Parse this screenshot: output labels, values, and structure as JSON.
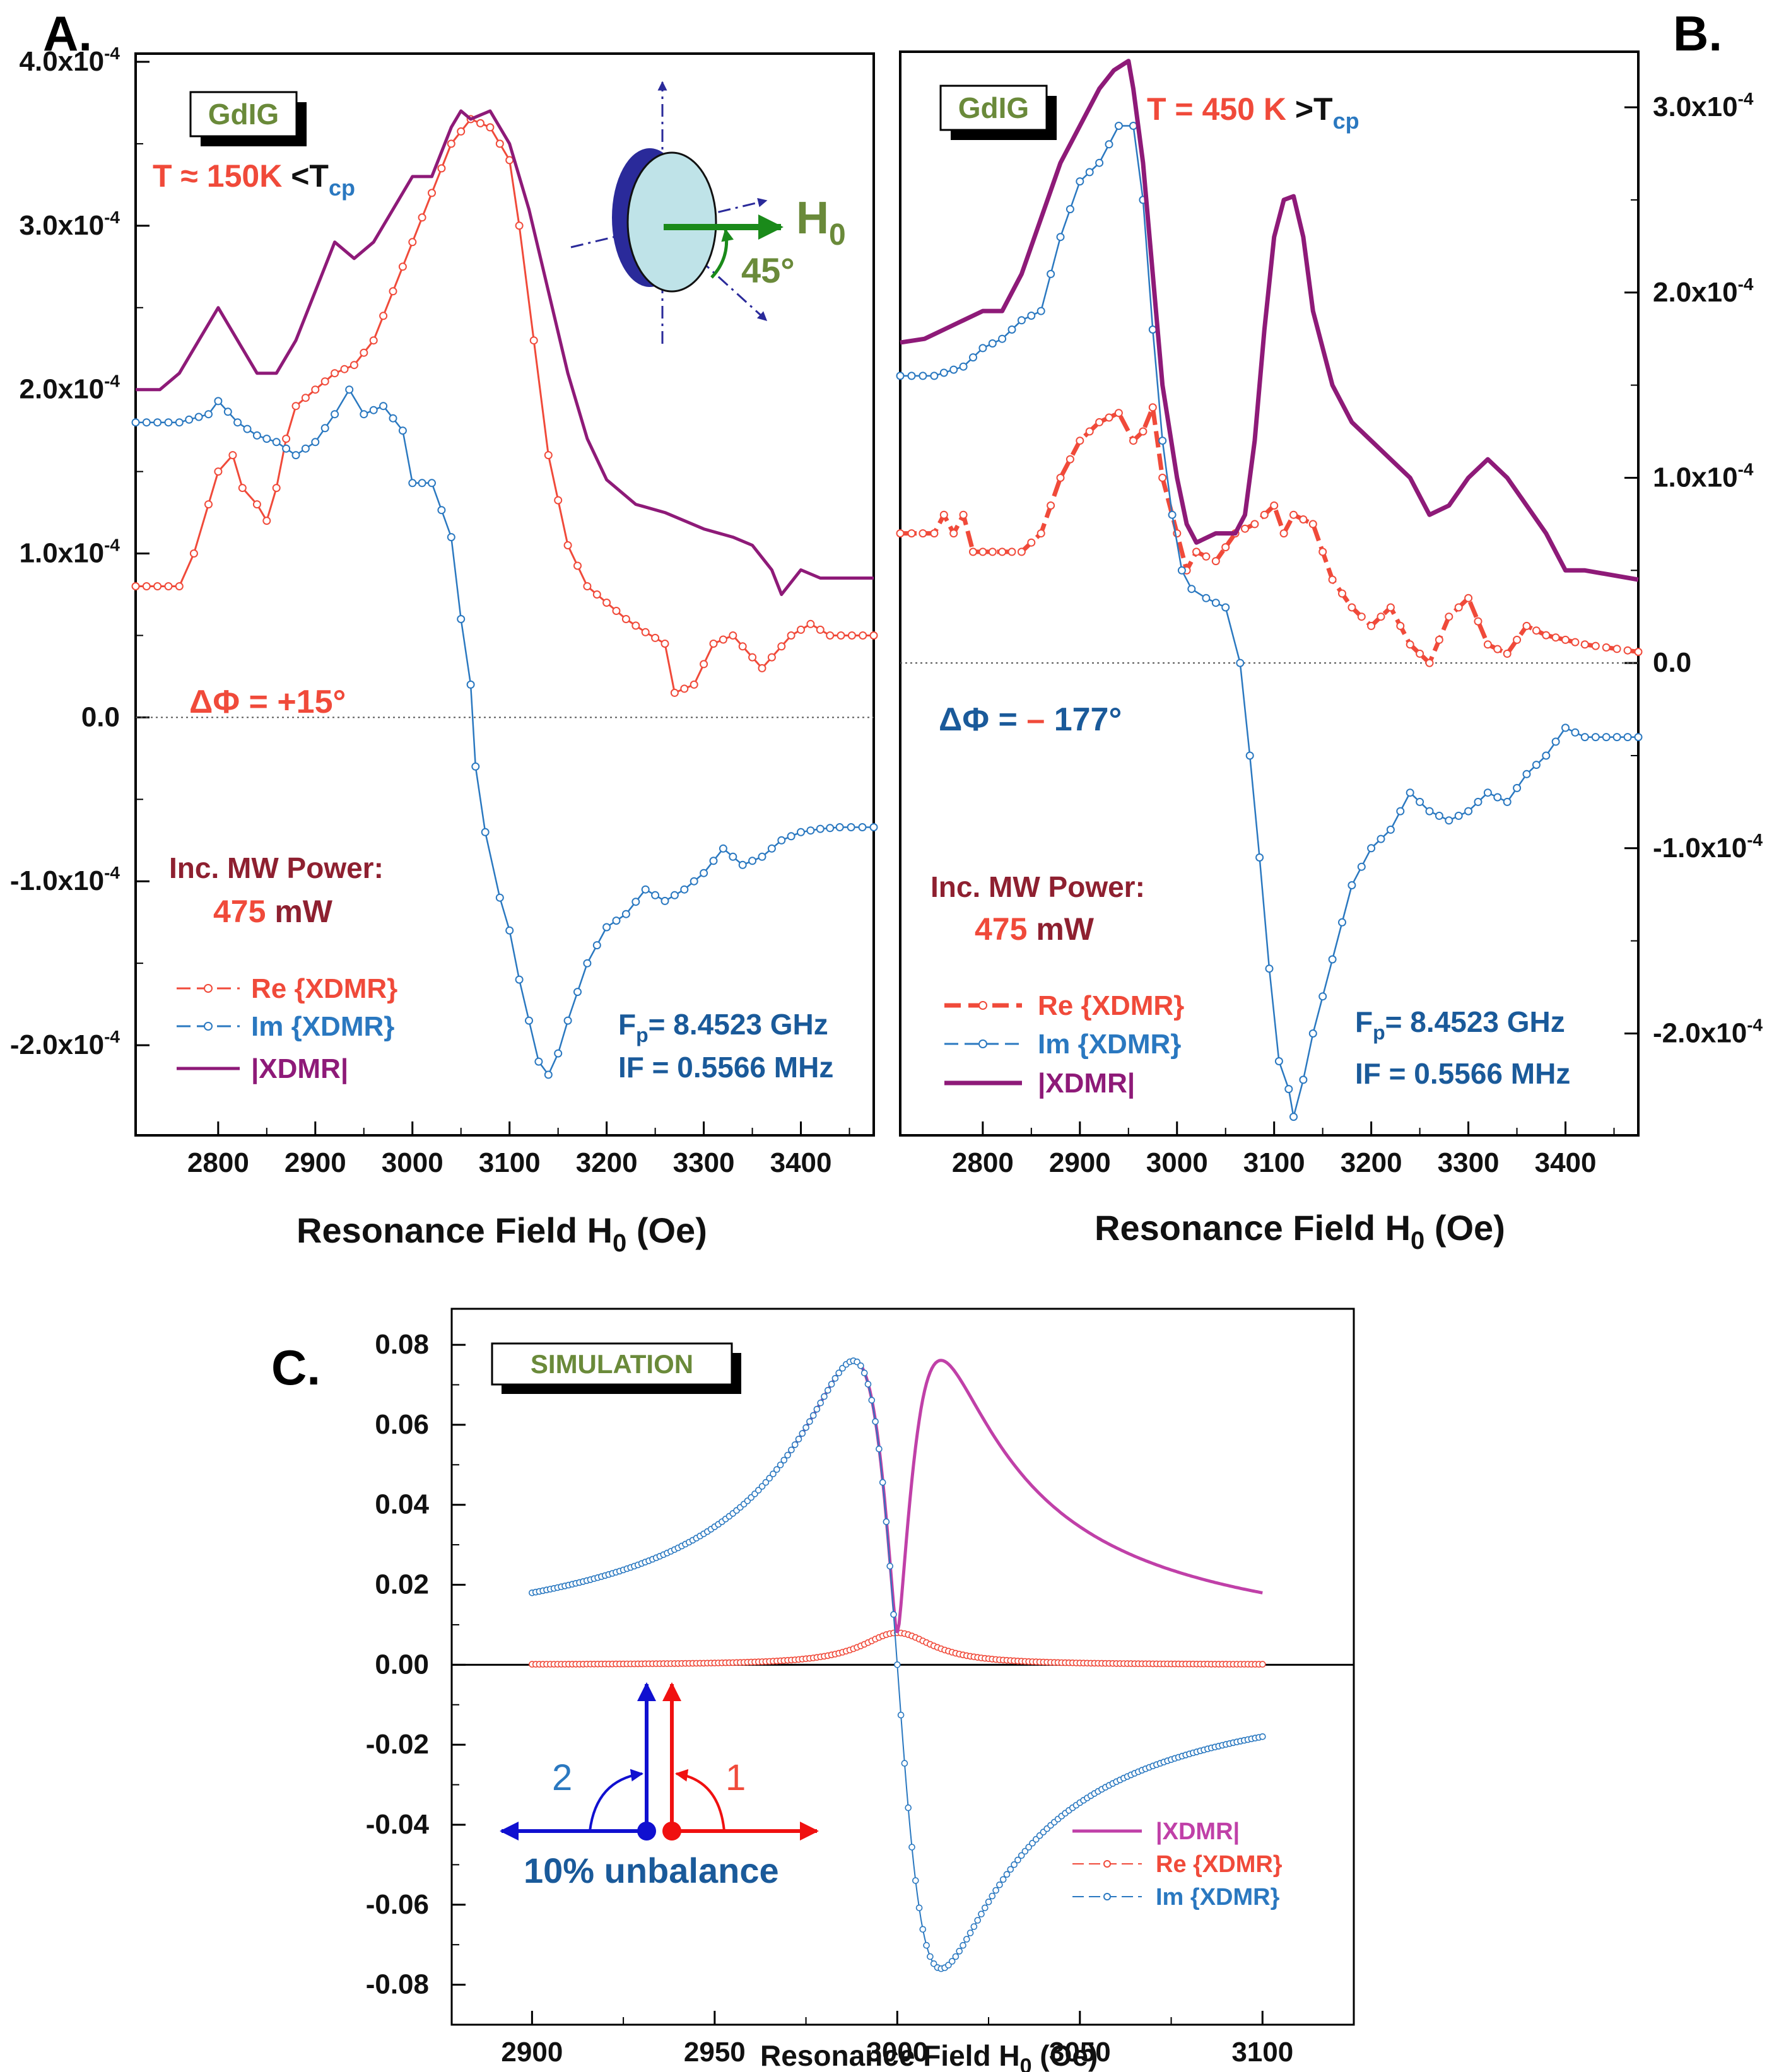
{
  "colors": {
    "re": "#f04a3a",
    "im": "#2a78c0",
    "mag": "#8e1a78",
    "mag_sim": "#c040a8",
    "sample": "#6a8a3a",
    "h0": "#1a8a1a",
    "navy": "#2a2a9a",
    "power": "#8e2030",
    "blue_text": "#1a5a9a",
    "arrow_blue": "#1010d0",
    "arrow_red": "#f01010"
  },
  "panelA": {
    "letter": "A.",
    "sample": "GdIG",
    "temp": {
      "prefix": "T ≈ ",
      "value": "150K",
      "rel": " <T",
      "sub": "cp"
    },
    "phase": "ΔΦ = +15°",
    "power_label": "Inc. MW Power:",
    "power_value": "475",
    "power_unit": " mW",
    "legend": {
      "re": "Re {XDMR}",
      "im": "Im {XDMR}",
      "mag": "|XDMR|"
    },
    "freq": {
      "fp": "F",
      "fp_sub": "p",
      "fp_value": "= 8.4523 GHz",
      "if": "IF = 0.5566 MHz"
    },
    "inset": {
      "field": "H",
      "field_sub": "0",
      "angle": "45°"
    },
    "xlabel": "Resonance  Field H",
    "xlabel_sub": "0",
    "xlabel_unit": " (Oe)",
    "yticks": [
      {
        "mant": "4.0x10",
        "exp": "-4"
      },
      {
        "mant": "3.0x10",
        "exp": "-4"
      },
      {
        "mant": "2.0x10",
        "exp": "-4"
      },
      {
        "mant": "1.0x10",
        "exp": "-4"
      },
      {
        "mant": "0.0",
        "exp": ""
      },
      {
        "mant": "-1.0x10",
        "exp": "-4"
      },
      {
        "mant": "-2.0x10",
        "exp": "-4"
      }
    ]
  },
  "panelB": {
    "letter": "B.",
    "sample": "GdIG",
    "temp": {
      "prefix": "T = ",
      "value": "450 K",
      "rel": " >T",
      "sub": "cp"
    },
    "phase_prefix": "ΔΦ = ",
    "phase_sign": "–",
    "phase_value": " 177°",
    "power_label": "Inc. MW Power:",
    "power_value": "475",
    "power_unit": " mW",
    "legend": {
      "re": "Re {XDMR}",
      "im": "Im {XDMR}",
      "mag": "|XDMR|"
    },
    "freq": {
      "fp": "F",
      "fp_sub": "p",
      "fp_value": "= 8.4523 GHz",
      "if": "IF = 0.5566 MHz"
    },
    "xlabel": "Resonance Field H",
    "xlabel_sub": "0",
    "xlabel_unit": " (Oe)",
    "yticks": [
      {
        "mant": "3.0x10",
        "exp": "-4"
      },
      {
        "mant": "2.0x10",
        "exp": "-4"
      },
      {
        "mant": "1.0x10",
        "exp": "-4"
      },
      {
        "mant": "0.0",
        "exp": ""
      },
      {
        "mant": "-1.0x10",
        "exp": "-4"
      },
      {
        "mant": "-2.0x10",
        "exp": "-4"
      }
    ]
  },
  "panelC": {
    "letter": "C.",
    "sample": "SIMULATION",
    "legend": {
      "mag": "|XDMR|",
      "re": "Re {XDMR}",
      "im": "Im {XDMR}"
    },
    "unbalance": "10% unbalance",
    "arrow1": "1",
    "arrow2": "2",
    "xlabel": "Resonance Field H",
    "xlabel_sub": "0",
    "xlabel_unit": "  (Oe)"
  },
  "chart_data": [
    {
      "type": "line",
      "title": "A. GdIG, T ≈ 150K <Tcp",
      "xlabel": "Resonance  Field H0 (Oe)",
      "ylabel": "",
      "xlim": [
        2715,
        3475
      ],
      "ylim": [
        -0.000255,
        0.000405
      ],
      "xticks": [
        2800,
        2900,
        3000,
        3100,
        3200,
        3300,
        3400
      ],
      "yticks": [
        0.0004,
        0.0003,
        0.0002,
        0.0001,
        0.0,
        -0.0001,
        -0.0002
      ],
      "series": [
        {
          "name": "Re {XDMR}",
          "x": [
            2715,
            2760,
            2775,
            2790,
            2800,
            2815,
            2825,
            2840,
            2850,
            2860,
            2870,
            2880,
            2900,
            2920,
            2940,
            2960,
            2980,
            3000,
            3020,
            3040,
            3060,
            3080,
            3100,
            3110,
            3125,
            3140,
            3160,
            3180,
            3200,
            3220,
            3240,
            3260,
            3270,
            3290,
            3310,
            3330,
            3360,
            3390,
            3410,
            3430,
            3475
          ],
          "y": [
            8e-05,
            8e-05,
            0.0001,
            0.00013,
            0.00015,
            0.00016,
            0.00014,
            0.00013,
            0.00012,
            0.00014,
            0.00017,
            0.00019,
            0.0002,
            0.00021,
            0.000215,
            0.00023,
            0.00026,
            0.00029,
            0.00032,
            0.00035,
            0.000365,
            0.00036,
            0.00034,
            0.0003,
            0.00023,
            0.00016,
            0.000105,
            8e-05,
            7e-05,
            6e-05,
            5.2e-05,
            4.5e-05,
            1.5e-05,
            2e-05,
            4.5e-05,
            5e-05,
            3e-05,
            5e-05,
            5.7e-05,
            5e-05,
            5e-05
          ]
        },
        {
          "name": "Im {XDMR}",
          "x": [
            2715,
            2760,
            2790,
            2800,
            2820,
            2840,
            2860,
            2880,
            2900,
            2920,
            2935,
            2950,
            2970,
            2990,
            3000,
            3020,
            3040,
            3050,
            3060,
            3065,
            3075,
            3090,
            3100,
            3110,
            3120,
            3130,
            3140,
            3150,
            3160,
            3180,
            3200,
            3220,
            3240,
            3260,
            3280,
            3300,
            3320,
            3340,
            3360,
            3380,
            3400,
            3420,
            3440,
            3475
          ],
          "y": [
            0.00018,
            0.00018,
            0.000185,
            0.000193,
            0.00018,
            0.000172,
            0.000168,
            0.00016,
            0.000168,
            0.000185,
            0.0002,
            0.000185,
            0.00019,
            0.000175,
            0.000143,
            0.000143,
            0.00011,
            6e-05,
            2e-05,
            -3e-05,
            -7e-05,
            -0.00011,
            -0.00013,
            -0.00016,
            -0.000185,
            -0.00021,
            -0.000218,
            -0.000205,
            -0.000185,
            -0.00015,
            -0.000128,
            -0.00012,
            -0.000105,
            -0.000112,
            -0.000105,
            -9.5e-05,
            -8e-05,
            -9e-05,
            -8.5e-05,
            -7.5e-05,
            -7e-05,
            -6.8e-05,
            -6.7e-05,
            -6.7e-05
          ]
        },
        {
          "name": "|XDMR|",
          "x": [
            2715,
            2740,
            2760,
            2780,
            2800,
            2820,
            2840,
            2860,
            2880,
            2900,
            2920,
            2940,
            2960,
            2980,
            3000,
            3020,
            3040,
            3050,
            3060,
            3080,
            3100,
            3120,
            3140,
            3160,
            3180,
            3200,
            3230,
            3260,
            3300,
            3330,
            3350,
            3370,
            3380,
            3400,
            3420,
            3440,
            3475
          ],
          "y": [
            0.0002,
            0.0002,
            0.00021,
            0.00023,
            0.00025,
            0.00023,
            0.00021,
            0.00021,
            0.00023,
            0.00026,
            0.00029,
            0.00028,
            0.00029,
            0.00031,
            0.00033,
            0.00033,
            0.00036,
            0.00037,
            0.000365,
            0.00037,
            0.00035,
            0.00031,
            0.00026,
            0.00021,
            0.00017,
            0.000145,
            0.00013,
            0.000125,
            0.000115,
            0.00011,
            0.000105,
            9e-05,
            7.5e-05,
            9e-05,
            8.5e-05,
            8.5e-05,
            8.5e-05
          ]
        }
      ]
    },
    {
      "type": "line",
      "title": "B. GdIG, T = 450 K >Tcp",
      "xlabel": "Resonance Field H0 (Oe)",
      "ylabel": "",
      "xlim": [
        2715,
        3475
      ],
      "ylim": [
        -0.000255,
        0.00033
      ],
      "xticks": [
        2800,
        2900,
        3000,
        3100,
        3200,
        3300,
        3400
      ],
      "yticks": [
        0.0003,
        0.0002,
        0.0001,
        0.0,
        -0.0001,
        -0.0002
      ],
      "series": [
        {
          "name": "Re {XDMR}",
          "x": [
            2715,
            2750,
            2760,
            2770,
            2780,
            2790,
            2800,
            2820,
            2840,
            2860,
            2880,
            2900,
            2920,
            2940,
            2955,
            2965,
            2975,
            2985,
            3000,
            3010,
            3020,
            3040,
            3060,
            3080,
            3100,
            3110,
            3120,
            3140,
            3160,
            3180,
            3200,
            3220,
            3240,
            3260,
            3280,
            3300,
            3320,
            3340,
            3360,
            3380,
            3420,
            3475
          ],
          "y": [
            7e-05,
            7e-05,
            8e-05,
            7e-05,
            8e-05,
            6e-05,
            6e-05,
            6e-05,
            6e-05,
            7e-05,
            0.0001,
            0.00012,
            0.00013,
            0.000135,
            0.00012,
            0.000125,
            0.000138,
            0.0001,
            7e-05,
            5e-05,
            6e-05,
            5.5e-05,
            7e-05,
            7.5e-05,
            8.5e-05,
            7e-05,
            8e-05,
            7.5e-05,
            4.5e-05,
            3e-05,
            2e-05,
            3e-05,
            1e-05,
            0.0,
            2.5e-05,
            3.5e-05,
            1e-05,
            5e-06,
            2e-05,
            1.5e-05,
            1e-05,
            6e-06
          ]
        },
        {
          "name": "Im {XDMR}",
          "x": [
            2715,
            2750,
            2780,
            2800,
            2820,
            2840,
            2860,
            2880,
            2900,
            2920,
            2940,
            2955,
            2965,
            2975,
            2985,
            2995,
            3005,
            3015,
            3030,
            3050,
            3065,
            3075,
            3085,
            3095,
            3105,
            3115,
            3120,
            3130,
            3140,
            3160,
            3180,
            3200,
            3220,
            3240,
            3260,
            3280,
            3300,
            3320,
            3340,
            3360,
            3380,
            3400,
            3420,
            3475
          ],
          "y": [
            0.000155,
            0.000155,
            0.00016,
            0.00017,
            0.000175,
            0.000185,
            0.00019,
            0.00023,
            0.00026,
            0.00027,
            0.00029,
            0.00029,
            0.00025,
            0.00018,
            0.00012,
            8e-05,
            5e-05,
            4e-05,
            3.5e-05,
            3e-05,
            0.0,
            -5e-05,
            -0.000105,
            -0.000165,
            -0.000215,
            -0.00023,
            -0.000245,
            -0.000225,
            -0.0002,
            -0.00016,
            -0.00012,
            -0.0001,
            -9e-05,
            -7e-05,
            -8e-05,
            -8.5e-05,
            -8e-05,
            -7e-05,
            -7.5e-05,
            -6e-05,
            -5e-05,
            -3.5e-05,
            -4e-05,
            -4e-05
          ]
        },
        {
          "name": "|XDMR|",
          "x": [
            2715,
            2740,
            2760,
            2780,
            2800,
            2820,
            2840,
            2860,
            2880,
            2900,
            2920,
            2935,
            2950,
            2955,
            2965,
            2975,
            2985,
            3000,
            3010,
            3020,
            3040,
            3060,
            3070,
            3080,
            3090,
            3100,
            3110,
            3120,
            3130,
            3140,
            3160,
            3180,
            3200,
            3220,
            3240,
            3260,
            3280,
            3300,
            3320,
            3340,
            3360,
            3380,
            3400,
            3420,
            3475
          ],
          "y": [
            0.000173,
            0.000175,
            0.00018,
            0.000185,
            0.00019,
            0.00019,
            0.00021,
            0.00024,
            0.00027,
            0.00029,
            0.00031,
            0.00032,
            0.000325,
            0.00031,
            0.00027,
            0.00021,
            0.00015,
            0.0001,
            7.5e-05,
            6.5e-05,
            7e-05,
            7e-05,
            8e-05,
            0.00012,
            0.00018,
            0.00023,
            0.00025,
            0.000252,
            0.00023,
            0.00019,
            0.00015,
            0.00013,
            0.00012,
            0.00011,
            0.0001,
            8e-05,
            8.5e-05,
            0.0001,
            0.00011,
            0.0001,
            8.5e-05,
            7e-05,
            5e-05,
            5e-05,
            4.5e-05
          ]
        }
      ]
    },
    {
      "type": "line",
      "title": "C. SIMULATION",
      "xlabel": "Resonance Field H0  (Oe)",
      "ylabel": "",
      "xlim": [
        2878,
        3125
      ],
      "ylim": [
        -0.09,
        0.089
      ],
      "xticks": [
        2900,
        2950,
        3000,
        3050,
        3100
      ],
      "yticks": [
        0.08,
        0.06,
        0.04,
        0.02,
        0.0,
        -0.02,
        -0.04,
        -0.06,
        -0.08
      ],
      "model": {
        "center_Oe": 3000,
        "halfwidth_Oe": 12,
        "peak_magnitude": 0.076,
        "re_peak": 0.008,
        "range": [
          2900,
          3100
        ]
      },
      "series": [
        {
          "name": "|XDMR|",
          "x": [
            2900,
            2950,
            2988,
            3000,
            3012,
            3050,
            3100
          ],
          "y": [
            0.0188,
            0.0337,
            0.076,
            0.0085,
            0.076,
            0.0337,
            0.0188
          ]
        },
        {
          "name": "Re {XDMR}",
          "x": [
            2900,
            2950,
            2988,
            3000,
            3012,
            3050,
            3100
          ],
          "y": [
            0.0,
            0.0004,
            0.004,
            0.008,
            0.004,
            0.0004,
            0.0
          ]
        },
        {
          "name": "Im {XDMR}",
          "x": [
            2900,
            2950,
            2988,
            3000,
            3012,
            3050,
            3100
          ],
          "y": [
            0.0188,
            0.0337,
            0.076,
            0.0,
            -0.076,
            -0.0337,
            -0.0188
          ]
        }
      ]
    }
  ]
}
